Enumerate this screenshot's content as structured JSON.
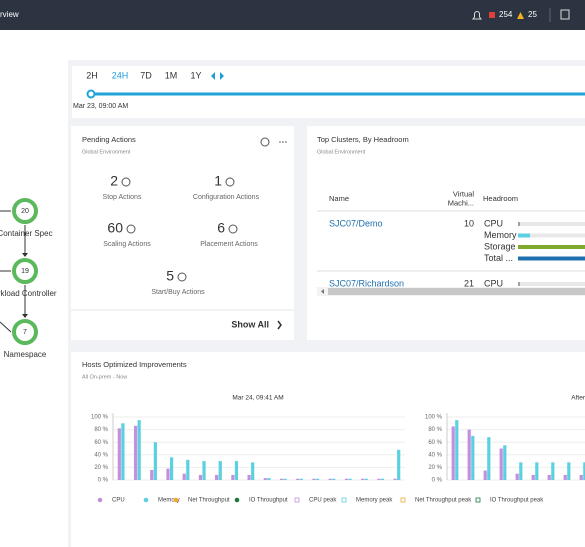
{
  "header": {
    "title": "rview",
    "critical_count": "254",
    "major_count": "25"
  },
  "time_range": {
    "options": [
      "2H",
      "24H",
      "7D",
      "1M",
      "1Y"
    ],
    "selected": 1,
    "timestamp": "Mar 23, 09:00 AM"
  },
  "supply_chain": {
    "nodes": [
      {
        "count": "20",
        "label": "Container Spec"
      },
      {
        "count": "19",
        "label": "orkload Controller"
      },
      {
        "count": "7",
        "label": "Namespace"
      }
    ]
  },
  "pending_actions": {
    "title": "Pending Actions",
    "subtitle": "Global Environment",
    "items": [
      {
        "count": "2",
        "label": "Stop Actions"
      },
      {
        "count": "1",
        "label": "Configuration Actions"
      },
      {
        "count": "60",
        "label": "Scaling Actions"
      },
      {
        "count": "6",
        "label": "Placement Actions"
      },
      {
        "count": "5",
        "label": "Start/Buy Actions"
      }
    ],
    "link": "Show All"
  },
  "top_clusters": {
    "title": "Top Clusters, By Headroom",
    "subtitle": "Global Environment",
    "columns": [
      [
        "Name"
      ],
      [
        "Virtual",
        "Machi..."
      ],
      [
        "Headroom"
      ]
    ],
    "xlim": [
      0,
      100
    ],
    "rows": [
      {
        "name": "SJC07/Demo",
        "vms": 10,
        "headroom": [
          {
            "label": "CPU",
            "value": 1,
            "color": "#9aa4ad"
          },
          {
            "label": "Memory",
            "value": 6,
            "color": "#5bd0e0"
          },
          {
            "label": "Storage",
            "value": 100,
            "color": "#7ea82e"
          },
          {
            "label": "Total ...",
            "value": 100,
            "color": "#1f6fad"
          }
        ]
      },
      {
        "name": "SJC07/Richardson",
        "vms": 21,
        "headroom": [
          {
            "label": "CPU",
            "value": 1,
            "color": "#9aa4ad"
          }
        ]
      }
    ]
  },
  "hosts": {
    "title": "Hosts Optimized Improvements",
    "subtitle": "All On-prem - Now",
    "legend": [
      {
        "name": "CPU",
        "color": "#c48fde",
        "marker": "dot"
      },
      {
        "name": "Memory",
        "color": "#5bd0e0",
        "marker": "dot"
      },
      {
        "name": "Net Throughput",
        "color": "#f0a830",
        "marker": "dot"
      },
      {
        "name": "IO Throughput",
        "color": "#1a7a3a",
        "marker": "dot"
      },
      {
        "name": "CPU peak",
        "color": "#c48fde",
        "marker": "square"
      },
      {
        "name": "Memory peak",
        "color": "#5bd0e0",
        "marker": "square"
      },
      {
        "name": "Net Throughput peak",
        "color": "#f0a830",
        "marker": "square"
      },
      {
        "name": "IO Throughput peak",
        "color": "#1a7a3a",
        "marker": "square"
      }
    ],
    "charts": [
      {
        "title": "Mar 24, 09:41 AM",
        "ylim": [
          0,
          100
        ],
        "yticks": [
          {
            "value": 0,
            "label": "0 %"
          },
          {
            "value": 20,
            "label": "20 %"
          },
          {
            "value": 40,
            "label": "40 %"
          },
          {
            "value": 60,
            "label": "60 %"
          },
          {
            "value": 80,
            "label": "80 %"
          },
          {
            "value": 100,
            "label": "100 %"
          }
        ],
        "cpu": [
          82,
          86,
          16,
          18,
          10,
          8,
          8,
          8,
          8,
          3,
          2,
          2,
          2,
          2,
          2,
          2,
          2,
          2
        ],
        "memory": [
          90,
          95,
          60,
          36,
          32,
          30,
          30,
          30,
          28,
          3,
          2,
          2,
          2,
          2,
          2,
          2,
          2,
          48
        ]
      },
      {
        "title": "After",
        "ylim": [
          0,
          100
        ],
        "yticks": [
          {
            "value": 0,
            "label": "0 %"
          },
          {
            "value": 20,
            "label": "20 %"
          },
          {
            "value": 40,
            "label": "40 %"
          },
          {
            "value": 60,
            "label": "60 %"
          },
          {
            "value": 80,
            "label": "80 %"
          },
          {
            "value": 100,
            "label": "100 %"
          }
        ],
        "cpu": [
          85,
          80,
          15,
          50,
          10,
          8,
          8,
          8,
          8,
          6
        ],
        "memory": [
          95,
          70,
          68,
          55,
          28,
          28,
          28,
          28,
          28,
          28
        ]
      }
    ]
  }
}
